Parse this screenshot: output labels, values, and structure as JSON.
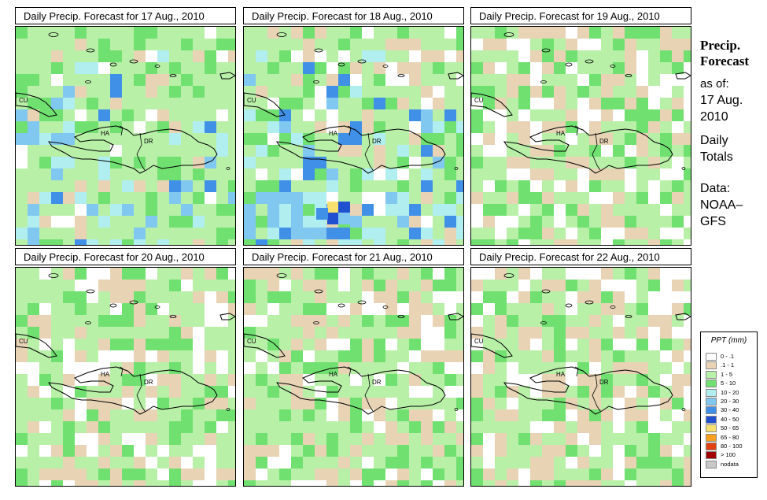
{
  "panels": [
    {
      "title": "Daily Precip. Forecast for  17 Aug., 2010",
      "seed": 17,
      "bias": 1,
      "blueBoost": 1,
      "dry": 0.12
    },
    {
      "title": "Daily Precip. Forecast for  18 Aug., 2010",
      "seed": 18,
      "bias": 1,
      "blueBoost": 2,
      "dry": 0.35
    },
    {
      "title": "Daily Precip. Forecast for  19 Aug., 2010",
      "seed": 19,
      "bias": 0,
      "blueBoost": 0,
      "dry": 0.45
    },
    {
      "title": "Daily Precip. Forecast for  20 Aug., 2010",
      "seed": 20,
      "bias": 0,
      "blueBoost": 0,
      "dry": 0.38
    },
    {
      "title": "Daily Precip. Forecast for  21 Aug., 2010",
      "seed": 21,
      "bias": 0,
      "blueBoost": 0,
      "dry": 0.4
    },
    {
      "title": "Daily Precip. Forecast for  22 Aug., 2010",
      "seed": 22,
      "bias": 0,
      "blueBoost": 0,
      "dry": 0.48
    }
  ],
  "map_labels": {
    "cuba": "CU",
    "haiti": "HA",
    "dominican_republic": "DR"
  },
  "side": {
    "title_line1": "Precip.",
    "title_line2": "Forecast",
    "asof_line1": "as of:",
    "asof_line2": "17 Aug.",
    "asof_line3": "2010",
    "totals_line1": "Daily",
    "totals_line2": "Totals",
    "data_line1": "Data:",
    "data_line2": "NOAA–",
    "data_line3": "GFS"
  },
  "legend": {
    "title": "PPT (mm)",
    "entries": [
      {
        "label": "0 - .1",
        "color": "#ffffff"
      },
      {
        "label": ".1 - 1",
        "color": "#e8d3b5"
      },
      {
        "label": "1 - 5",
        "color": "#b8f0a8"
      },
      {
        "label": "5 - 10",
        "color": "#70e070"
      },
      {
        "label": "10 - 20",
        "color": "#b0eef0"
      },
      {
        "label": "20 - 30",
        "color": "#80c8f0"
      },
      {
        "label": "30 - 40",
        "color": "#4090e8"
      },
      {
        "label": "40 - 50",
        "color": "#2050d0"
      },
      {
        "label": "50 - 65",
        "color": "#f8e070"
      },
      {
        "label": "65 - 80",
        "color": "#f8a020"
      },
      {
        "label": "80 - 100",
        "color": "#e04010"
      },
      {
        "label": "> 100",
        "color": "#a00000"
      },
      {
        "label": "nodata",
        "color": "#c8c8c8"
      }
    ]
  }
}
